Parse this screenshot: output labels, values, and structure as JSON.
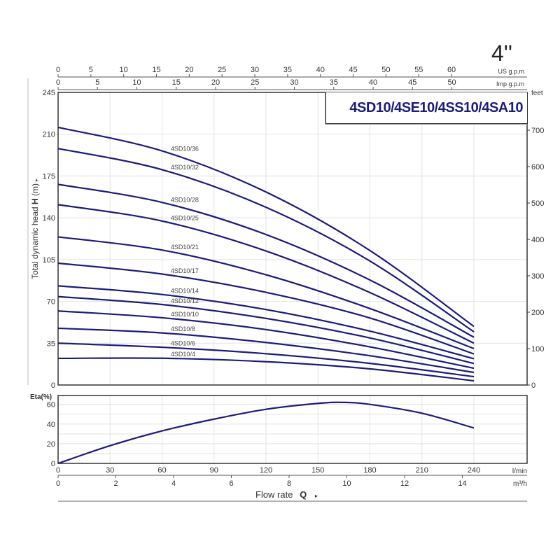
{
  "size_label": "4''",
  "chart_data": [
    {
      "type": "line",
      "title": "4SD10/4SE10/4SS10/4SA10",
      "ylabel": "Total dynamic head",
      "ylabel_symbol": "H",
      "ylabel_unit": "(m)",
      "ylim": [
        0,
        245
      ],
      "yticks": [
        0,
        35,
        70,
        105,
        140,
        175,
        210,
        245
      ],
      "y2_label": "feet",
      "y2ticks": [
        0,
        100,
        200,
        300,
        400,
        500,
        600,
        700
      ],
      "xlim": [
        0,
        270
      ],
      "x_unit": "l/min",
      "top_axes": [
        {
          "label": "US g.p.m",
          "ticks": [
            0,
            5,
            10,
            15,
            20,
            25,
            30,
            35,
            40,
            45,
            50,
            55,
            60
          ],
          "lpm_per_unit": 3.785
        },
        {
          "label": "Imp g.p.m",
          "ticks": [
            0,
            5,
            10,
            15,
            20,
            25,
            30,
            35,
            40,
            45,
            50
          ],
          "lpm_per_unit": 4.546
        }
      ],
      "grid": true,
      "x": [
        0,
        60,
        120,
        180,
        240
      ],
      "series": [
        {
          "name": "4SD10/36",
          "values": [
            215.7,
            196,
            161.6,
            112.6,
            49
          ]
        },
        {
          "name": "4SD10/32",
          "values": [
            198,
            180.3,
            148.8,
            103.8,
            44.5
          ]
        },
        {
          "name": "4SD10/28",
          "values": [
            168,
            152.9,
            126,
            87.9,
            40
          ]
        },
        {
          "name": "4SD10/25",
          "values": [
            151,
            137.3,
            112.2,
            77.4,
            35
          ]
        },
        {
          "name": "4SD10/21",
          "values": [
            124,
            113.0,
            92.3,
            64,
            30.5
          ]
        },
        {
          "name": "4SD10/17",
          "values": [
            102,
            92.9,
            77.6,
            56.1,
            26
          ]
        },
        {
          "name": "4SD10/14",
          "values": [
            83,
            75.8,
            63.2,
            45.1,
            22
          ]
        },
        {
          "name": "4SD10/12",
          "values": [
            74,
            67.4,
            55.8,
            39.4,
            18
          ]
        },
        {
          "name": "4SD10/10",
          "values": [
            62,
            56.3,
            46.4,
            31.9,
            14
          ]
        },
        {
          "name": "4SD10/8",
          "values": [
            47.5,
            43.6,
            35.6,
            24.5,
            10.5
          ]
        },
        {
          "name": "4SD10/6",
          "values": [
            35,
            31.6,
            26.2,
            18.1,
            7
          ]
        },
        {
          "name": "4SD10/4",
          "values": [
            22.3,
            22.4,
            19.5,
            13.5,
            3.5
          ]
        }
      ],
      "color": "#1c1c7a"
    },
    {
      "type": "line",
      "ylabel": "Eta(%)",
      "ylim": [
        0,
        69
      ],
      "yticks": [
        0,
        20,
        40,
        60
      ],
      "xlabel": "Flow rate",
      "xlabel_symbol": "Q",
      "x_unit": "l/min",
      "xticks": [
        0,
        30,
        60,
        90,
        120,
        150,
        180,
        210,
        240
      ],
      "x2_label": "m³/h",
      "x2ticks": [
        0,
        2,
        4,
        6,
        8,
        10,
        12,
        14
      ],
      "grid": true,
      "x": [
        0,
        30,
        60,
        90,
        120,
        150,
        165,
        180,
        210,
        240
      ],
      "values": [
        0,
        18,
        33,
        45,
        55,
        61,
        62,
        60,
        51,
        36
      ],
      "color": "#1c1c7a"
    }
  ]
}
